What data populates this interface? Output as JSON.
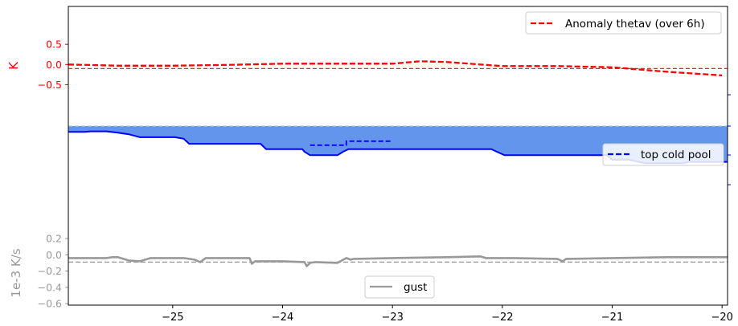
{
  "chart_data": {
    "type": "line",
    "x_ticks": [
      -25,
      -24,
      -23,
      -22,
      -21,
      -20
    ],
    "x_tick_labels": [
      "−25",
      "−24",
      "−23",
      "−22",
      "−21",
      "−20"
    ],
    "xlim": [
      -25.95,
      -19.95
    ],
    "panels": [
      {
        "name": "anomaly",
        "ylabel": "K",
        "ylabel_color": "#ff0000",
        "y_ticks": [
          0.5,
          0.0,
          -0.5
        ],
        "y_tick_labels": [
          "0.5",
          "0.0",
          "−0.5"
        ],
        "ylim": [
          -2.4,
          1.08
        ],
        "legend": "top-right",
        "series": [
          {
            "name": "Anomaly thetav (over 6h)",
            "color": "#ff0000",
            "style": "dashed",
            "x": [
              -25.95,
              -25.5,
              -25.0,
              -24.5,
              -24.0,
              -23.5,
              -23.0,
              -22.75,
              -22.5,
              -22.0,
              -21.5,
              -21.0,
              -20.5,
              -20.0
            ],
            "y": [
              0.0,
              -0.03,
              -0.03,
              -0.01,
              0.02,
              0.02,
              0.02,
              0.08,
              0.06,
              -0.04,
              -0.04,
              -0.07,
              -0.18,
              -0.27
            ]
          }
        ],
        "baseline": {
          "y": -0.1,
          "color": "#ff0000",
          "style": "dashed"
        }
      },
      {
        "name": "cold-pool",
        "legend": "right",
        "series": [
          {
            "name": "top cold pool",
            "color": "#0000ff",
            "style": "dashed",
            "x": [
              -23.75,
              -23.42,
              -23.42,
              -23.0
            ],
            "y": [
              0.72,
              0.72,
              0.57,
              0.57
            ]
          }
        ],
        "fill_color": "#6495ed",
        "top_line": {
          "y": 0.0,
          "color": "#aac4f0",
          "style": "dashed"
        },
        "depth": {
          "x": [
            -25.95,
            -25.8,
            -25.75,
            -25.6,
            -25.5,
            -25.4,
            -25.3,
            -24.98,
            -24.9,
            -24.85,
            -24.7,
            -24.2,
            -24.15,
            -24.0,
            -23.82,
            -23.8,
            -23.75,
            -23.5,
            -23.45,
            -23.4,
            -23.35,
            -23.2,
            -22.5,
            -22.1,
            -22.05,
            -21.98,
            -21.5,
            -21.45,
            -21.05,
            -21.0,
            -20.85,
            -20.7,
            -20.35,
            -20.3,
            -19.95
          ],
          "y": [
            0.22,
            0.22,
            0.2,
            0.2,
            0.25,
            0.31,
            0.42,
            0.42,
            0.48,
            0.67,
            0.67,
            0.67,
            0.87,
            0.87,
            0.87,
            0.97,
            1.1,
            1.1,
            0.97,
            0.87,
            0.87,
            0.87,
            0.87,
            0.87,
            0.97,
            1.1,
            1.1,
            1.1,
            1.1,
            1.27,
            1.27,
            1.4,
            1.4,
            1.35,
            1.35
          ]
        }
      },
      {
        "name": "gust",
        "ylabel": "1e-3 K/s",
        "ylabel_color": "#999999",
        "y_ticks": [
          0.2,
          0.0,
          -0.2,
          -0.4,
          -0.6
        ],
        "y_tick_labels": [
          "0.2",
          "0.0",
          "−0.2",
          "−0.4",
          "−0.6"
        ],
        "ylim": [
          -0.6,
          0.33
        ],
        "legend": "bottom-center",
        "series": [
          {
            "name": "gust",
            "color": "#999999",
            "style": "solid",
            "x": [
              -25.95,
              -25.6,
              -25.55,
              -25.5,
              -25.4,
              -25.3,
              -25.2,
              -24.9,
              -24.8,
              -24.75,
              -24.7,
              -24.3,
              -24.28,
              -24.25,
              -24.0,
              -23.8,
              -23.78,
              -23.75,
              -23.7,
              -23.5,
              -23.42,
              -23.38,
              -23.35,
              -23.0,
              -22.5,
              -22.2,
              -22.15,
              -21.9,
              -21.5,
              -21.45,
              -21.42,
              -21.4,
              -21.0,
              -20.5,
              -20.0,
              -19.95
            ],
            "y": [
              -0.04,
              -0.04,
              -0.03,
              -0.03,
              -0.07,
              -0.08,
              -0.04,
              -0.04,
              -0.06,
              -0.09,
              -0.04,
              -0.04,
              -0.11,
              -0.08,
              -0.08,
              -0.09,
              -0.14,
              -0.1,
              -0.09,
              -0.1,
              -0.04,
              -0.06,
              -0.05,
              -0.04,
              -0.03,
              -0.02,
              -0.04,
              -0.04,
              -0.05,
              -0.08,
              -0.05,
              -0.05,
              -0.04,
              -0.03,
              -0.03,
              -0.03
            ]
          }
        ],
        "baseline": {
          "y": -0.09,
          "color": "#999999",
          "style": "dashed"
        }
      }
    ],
    "colors": {
      "anomaly": "#ff0000",
      "cold_pool_line": "#0000ff",
      "cold_pool_fill": "#6495ed",
      "gust": "#999999",
      "axis_frame": "#000000"
    }
  }
}
